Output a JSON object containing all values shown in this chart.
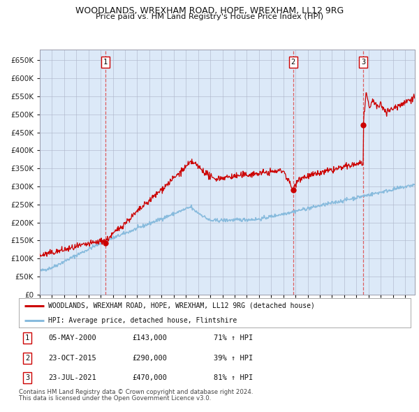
{
  "title": "WOODLANDS, WREXHAM ROAD, HOPE, WREXHAM, LL12 9RG",
  "subtitle": "Price paid vs. HM Land Registry's House Price Index (HPI)",
  "background_color": "#dce9f8",
  "plot_bg_color": "#dce9f8",
  "hpi_line_color": "#88bbdd",
  "price_line_color": "#cc0000",
  "marker_color": "#cc0000",
  "dashed_line_color": "#dd4444",
  "sale_date_nums": [
    2000.37,
    2015.81,
    2021.56
  ],
  "sale_prices_val": [
    143000,
    290000,
    470000
  ],
  "sale_labels": [
    "1",
    "2",
    "3"
  ],
  "sale_dates": [
    "05-MAY-2000",
    "23-OCT-2015",
    "23-JUL-2021"
  ],
  "sale_prices_str": [
    "£143,000",
    "£290,000",
    "£470,000"
  ],
  "sale_hpi_pct": [
    "71% ↑ HPI",
    "39% ↑ HPI",
    "81% ↑ HPI"
  ],
  "legend_line1": "WOODLANDS, WREXHAM ROAD, HOPE, WREXHAM, LL12 9RG (detached house)",
  "legend_line2": "HPI: Average price, detached house, Flintshire",
  "footer1": "Contains HM Land Registry data © Crown copyright and database right 2024.",
  "footer2": "This data is licensed under the Open Government Licence v3.0.",
  "ylim": [
    0,
    680000
  ],
  "yticks": [
    0,
    50000,
    100000,
    150000,
    200000,
    250000,
    300000,
    350000,
    400000,
    450000,
    500000,
    550000,
    600000,
    650000
  ],
  "xlim_start": 1995.0,
  "xlim_end": 2025.8
}
